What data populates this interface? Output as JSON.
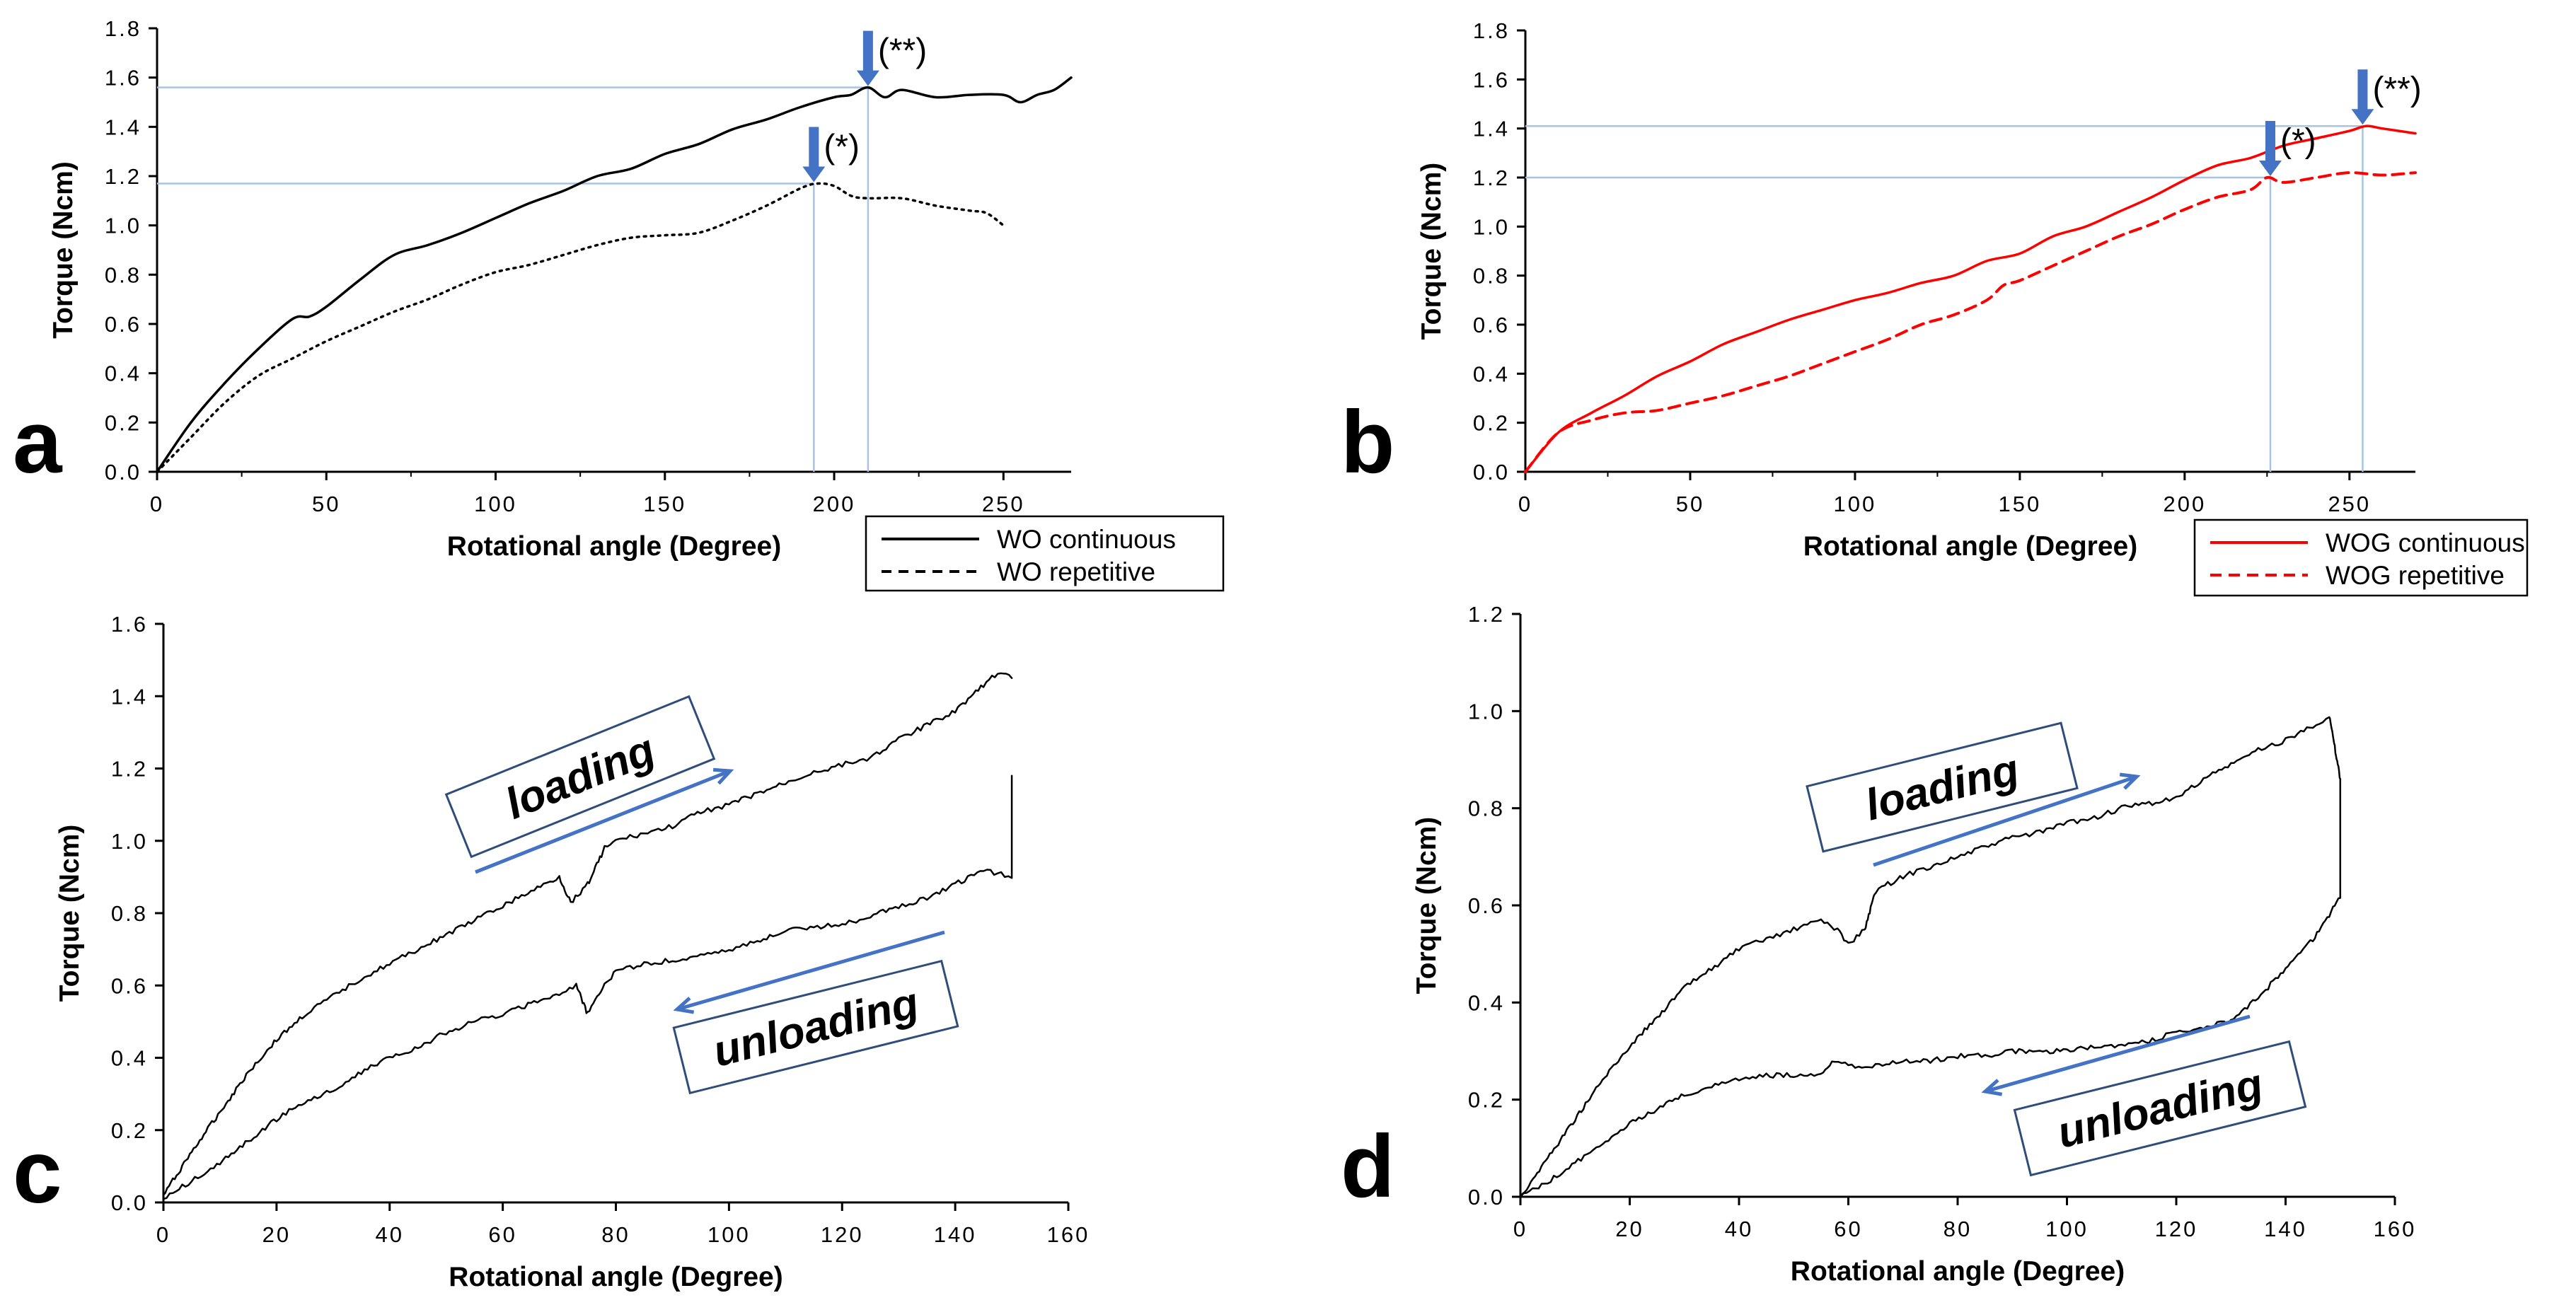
{
  "chart_data": [
    {
      "panel": "a",
      "type": "line",
      "ylabel": "Torque (Ncm)",
      "xlabel": "Rotational angle (Degree)",
      "xlim": [
        0,
        270
      ],
      "ylim": [
        0,
        1.8
      ],
      "xticks": [
        "0",
        "50",
        "100",
        "150",
        "200",
        "250"
      ],
      "yticks": [
        "0.0",
        "0.2",
        "0.4",
        "0.6",
        "0.8",
        "1.0",
        "1.2",
        "1.4",
        "1.6",
        "1.8"
      ],
      "legend": "bottom-right outside",
      "color": "#000000",
      "series": [
        {
          "name": "WO continuous",
          "style": "solid",
          "x": [
            0,
            10,
            20,
            30,
            40,
            45,
            50,
            60,
            70,
            80,
            90,
            100,
            110,
            120,
            130,
            140,
            150,
            160,
            170,
            180,
            190,
            200,
            205,
            210,
            215,
            220,
            230,
            240,
            250,
            255,
            260,
            265,
            270
          ],
          "y": [
            0,
            0.2,
            0.36,
            0.5,
            0.62,
            0.63,
            0.67,
            0.78,
            0.88,
            0.92,
            0.97,
            1.03,
            1.09,
            1.14,
            1.2,
            1.23,
            1.29,
            1.33,
            1.39,
            1.43,
            1.48,
            1.52,
            1.53,
            1.56,
            1.52,
            1.55,
            1.52,
            1.53,
            1.53,
            1.5,
            1.53,
            1.55,
            1.6
          ]
        },
        {
          "name": "WO repetitive",
          "style": "dotted",
          "x": [
            0,
            10,
            20,
            30,
            40,
            50,
            60,
            70,
            80,
            90,
            100,
            110,
            120,
            130,
            140,
            150,
            160,
            170,
            180,
            190,
            195,
            200,
            205,
            210,
            220,
            230,
            240,
            245,
            250
          ],
          "y": [
            0,
            0.14,
            0.28,
            0.39,
            0.46,
            0.53,
            0.59,
            0.65,
            0.7,
            0.76,
            0.81,
            0.84,
            0.88,
            0.92,
            0.95,
            0.96,
            0.97,
            1.02,
            1.08,
            1.15,
            1.17,
            1.16,
            1.12,
            1.11,
            1.11,
            1.08,
            1.06,
            1.05,
            1.0
          ]
        }
      ],
      "markers": [
        {
          "label": "(*)",
          "x": 194,
          "y": 1.17
        },
        {
          "label": "(**)",
          "x": 210,
          "y": 1.56
        }
      ]
    },
    {
      "panel": "b",
      "type": "line",
      "ylabel": "Torque (Ncm)",
      "xlabel": "Rotational angle (Degree)",
      "xlim": [
        0,
        270
      ],
      "ylim": [
        0,
        1.8
      ],
      "xticks": [
        "0",
        "50",
        "100",
        "150",
        "200",
        "250"
      ],
      "yticks": [
        "0.0",
        "0.2",
        "0.4",
        "0.6",
        "0.8",
        "1.0",
        "1.2",
        "1.4",
        "1.6",
        "1.8"
      ],
      "legend": "bottom-right outside",
      "color": "#ff0000",
      "series": [
        {
          "name": "WOG continuous",
          "style": "solid",
          "x": [
            0,
            10,
            20,
            30,
            40,
            50,
            60,
            70,
            80,
            90,
            100,
            110,
            120,
            130,
            140,
            150,
            160,
            170,
            180,
            190,
            200,
            210,
            220,
            230,
            240,
            250,
            255,
            260,
            270
          ],
          "y": [
            0,
            0.16,
            0.24,
            0.31,
            0.39,
            0.45,
            0.52,
            0.57,
            0.62,
            0.66,
            0.7,
            0.73,
            0.77,
            0.8,
            0.86,
            0.89,
            0.96,
            1.0,
            1.06,
            1.12,
            1.19,
            1.25,
            1.28,
            1.33,
            1.36,
            1.39,
            1.41,
            1.4,
            1.38
          ]
        },
        {
          "name": "WOG repetitive",
          "style": "dashed",
          "x": [
            0,
            10,
            20,
            30,
            40,
            50,
            60,
            70,
            80,
            90,
            100,
            110,
            120,
            130,
            140,
            145,
            150,
            160,
            170,
            180,
            190,
            200,
            210,
            220,
            225,
            230,
            240,
            250,
            260,
            270
          ],
          "y": [
            0,
            0.16,
            0.21,
            0.24,
            0.25,
            0.28,
            0.31,
            0.35,
            0.39,
            0.44,
            0.49,
            0.54,
            0.6,
            0.64,
            0.7,
            0.76,
            0.78,
            0.84,
            0.9,
            0.96,
            1.01,
            1.07,
            1.12,
            1.15,
            1.2,
            1.18,
            1.2,
            1.22,
            1.21,
            1.22
          ]
        }
      ],
      "markers": [
        {
          "label": "(*)",
          "x": 226,
          "y": 1.2
        },
        {
          "label": "(**)",
          "x": 254,
          "y": 1.41
        }
      ]
    },
    {
      "panel": "c",
      "type": "line",
      "ylabel": "Torque (Ncm)",
      "xlabel": "Rotational angle (Degree)",
      "xlim": [
        0,
        160
      ],
      "ylim": [
        0,
        1.6
      ],
      "xticks": [
        "0",
        "20",
        "40",
        "60",
        "80",
        "100",
        "120",
        "140",
        "160"
      ],
      "yticks": [
        "0.0",
        "0.2",
        "0.4",
        "0.6",
        "0.8",
        "1.0",
        "1.2",
        "1.4",
        "1.6"
      ],
      "color": "#000000",
      "series": [
        {
          "name": "loading",
          "style": "solid",
          "x": [
            0,
            5,
            10,
            15,
            20,
            25,
            30,
            35,
            40,
            45,
            50,
            55,
            60,
            65,
            70,
            72,
            75,
            78,
            80,
            85,
            90,
            95,
            100,
            105,
            110,
            115,
            120,
            125,
            130,
            135,
            140,
            145,
            148,
            150
          ],
          "y": [
            0.02,
            0.14,
            0.25,
            0.36,
            0.45,
            0.52,
            0.57,
            0.62,
            0.66,
            0.7,
            0.74,
            0.78,
            0.82,
            0.86,
            0.9,
            0.83,
            0.88,
            0.98,
            1.0,
            1.02,
            1.04,
            1.08,
            1.1,
            1.13,
            1.16,
            1.19,
            1.21,
            1.23,
            1.28,
            1.32,
            1.36,
            1.43,
            1.47,
            1.45
          ]
        },
        {
          "name": "unloading",
          "style": "solid",
          "x": [
            150,
            150,
            145,
            140,
            135,
            130,
            125,
            120,
            115,
            110,
            105,
            100,
            95,
            90,
            85,
            80,
            78,
            75,
            73,
            70,
            65,
            60,
            55,
            50,
            45,
            40,
            35,
            30,
            25,
            20,
            15,
            10,
            5,
            0
          ],
          "y": [
            1.18,
            0.9,
            0.92,
            0.88,
            0.84,
            0.82,
            0.79,
            0.77,
            0.76,
            0.75,
            0.72,
            0.7,
            0.68,
            0.67,
            0.66,
            0.64,
            0.6,
            0.52,
            0.6,
            0.58,
            0.55,
            0.52,
            0.5,
            0.47,
            0.43,
            0.4,
            0.36,
            0.31,
            0.28,
            0.23,
            0.17,
            0.11,
            0.06,
            0.01
          ]
        }
      ],
      "annotations": [
        "loading",
        "unloading"
      ]
    },
    {
      "panel": "d",
      "type": "line",
      "ylabel": "Torque (Ncm)",
      "xlabel": "Rotational angle (Degree)",
      "xlim": [
        0,
        160
      ],
      "ylim": [
        0,
        1.2
      ],
      "xticks": [
        "0",
        "20",
        "40",
        "60",
        "80",
        "100",
        "120",
        "140",
        "160"
      ],
      "yticks": [
        "0.0",
        "0.2",
        "0.4",
        "0.6",
        "0.8",
        "1.0",
        "1.2"
      ],
      "color": "#000000",
      "series": [
        {
          "name": "loading",
          "style": "solid",
          "x": [
            0,
            5,
            10,
            15,
            20,
            25,
            30,
            35,
            40,
            45,
            50,
            55,
            58,
            60,
            63,
            65,
            70,
            75,
            80,
            85,
            90,
            95,
            100,
            105,
            110,
            115,
            120,
            125,
            130,
            135,
            140,
            145,
            148,
            150
          ],
          "y": [
            0.0,
            0.08,
            0.16,
            0.24,
            0.31,
            0.37,
            0.43,
            0.47,
            0.51,
            0.53,
            0.55,
            0.57,
            0.55,
            0.52,
            0.55,
            0.63,
            0.66,
            0.68,
            0.7,
            0.72,
            0.74,
            0.75,
            0.77,
            0.78,
            0.8,
            0.81,
            0.82,
            0.86,
            0.89,
            0.92,
            0.94,
            0.97,
            0.99,
            0.86
          ]
        },
        {
          "name": "unloading",
          "style": "solid",
          "x": [
            150,
            150,
            148,
            145,
            140,
            135,
            130,
            125,
            120,
            115,
            110,
            105,
            100,
            95,
            90,
            85,
            80,
            75,
            70,
            65,
            60,
            57,
            55,
            50,
            45,
            40,
            35,
            30,
            25,
            20,
            15,
            10,
            5,
            0
          ],
          "y": [
            0.86,
            0.62,
            0.58,
            0.53,
            0.47,
            0.41,
            0.36,
            0.35,
            0.34,
            0.32,
            0.31,
            0.31,
            0.3,
            0.3,
            0.3,
            0.29,
            0.29,
            0.28,
            0.28,
            0.27,
            0.27,
            0.28,
            0.25,
            0.25,
            0.25,
            0.24,
            0.23,
            0.21,
            0.18,
            0.15,
            0.11,
            0.07,
            0.03,
            0.0
          ]
        }
      ],
      "annotations": [
        "loading",
        "unloading"
      ]
    }
  ],
  "ui": {
    "loading_label": "loading",
    "unloading_label": "unloading",
    "accent_color": "#4472c4",
    "guide_color": "#a9c4e0"
  }
}
